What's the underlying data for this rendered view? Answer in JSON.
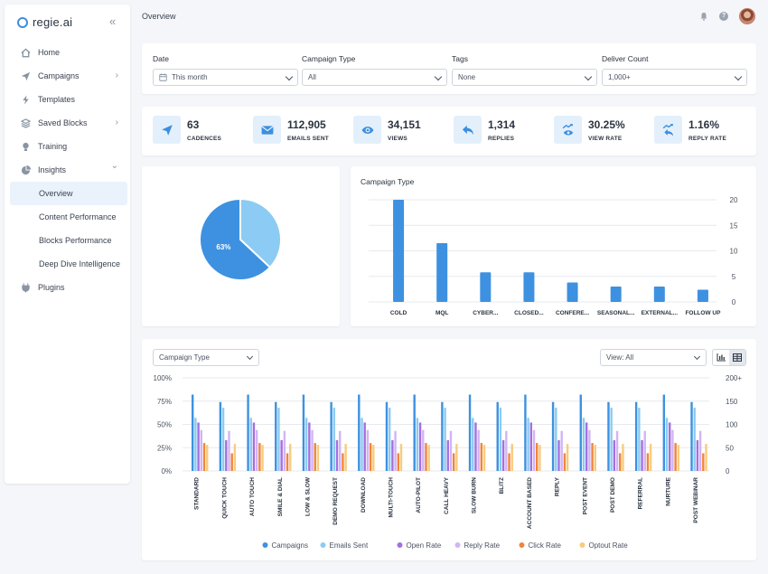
{
  "brand": {
    "name": "regie.ai",
    "accent": "#3b8fe0"
  },
  "sidebar": {
    "items": [
      {
        "label": "Home",
        "icon": "home-icon",
        "chevron": false
      },
      {
        "label": "Campaigns",
        "icon": "send-icon",
        "chevron": true
      },
      {
        "label": "Templates",
        "icon": "lightning-icon",
        "chevron": false
      },
      {
        "label": "Saved Blocks",
        "icon": "blocks-icon",
        "chevron": true
      },
      {
        "label": "Training",
        "icon": "bulb-icon",
        "chevron": false
      },
      {
        "label": "Insights",
        "icon": "pie-icon",
        "chevron": true,
        "expanded": true
      },
      {
        "label": "Overview",
        "sub": true,
        "active": true
      },
      {
        "label": "Content Performance",
        "sub": true
      },
      {
        "label": "Blocks Performance",
        "sub": true
      },
      {
        "label": "Deep Dive Intelligence",
        "sub": true
      },
      {
        "label": "Plugins",
        "icon": "plug-icon",
        "chevron": false
      }
    ]
  },
  "header": {
    "title": "Overview"
  },
  "filters": [
    {
      "label": "Date",
      "value": "This month",
      "icon": "calendar-icon"
    },
    {
      "label": "Campaign Type",
      "value": "All"
    },
    {
      "label": "Tags",
      "value": "None"
    },
    {
      "label": "Deliver Count",
      "value": "1,000+"
    }
  ],
  "stats": [
    {
      "value": "63",
      "label": "CADENCES",
      "icon": "send-icon"
    },
    {
      "value": "112,905",
      "label": "EMAILS SENT",
      "icon": "mail-icon"
    },
    {
      "value": "34,151",
      "label": "VIEWS",
      "icon": "eye-icon"
    },
    {
      "value": "1,314",
      "label": "REPLIES",
      "icon": "reply-icon"
    },
    {
      "value": "30.25%",
      "label": "VIEW RATE",
      "icon": "view-rate-icon"
    },
    {
      "value": "1.16%",
      "label": "REPLY RATE",
      "icon": "reply-rate-icon"
    }
  ],
  "bottom": {
    "type_select": "Campaign Type",
    "view_select": "View: All"
  },
  "chart_data": [
    {
      "type": "pie",
      "values": [
        37,
        63
      ],
      "colors": [
        "#8ccbf3",
        "#3d91e0"
      ],
      "labels": [
        "",
        "63%"
      ]
    },
    {
      "type": "bar",
      "title": "Campaign Type",
      "categories": [
        "COLD",
        "MQL",
        "CYBER...",
        "CLOSED...",
        "CONFERE...",
        "SEASONAL...",
        "EXTERNAL...",
        "FOLLOW UP"
      ],
      "values": [
        20,
        11.5,
        5.8,
        5.8,
        3.8,
        3,
        3,
        2.4
      ],
      "ylim": [
        0,
        20
      ],
      "yticks": [
        0,
        5,
        10,
        15,
        20
      ],
      "color": "#3d91e0"
    },
    {
      "type": "bar",
      "categories": [
        "STANDARD",
        "QUICK TOUCH",
        "AUTO TOUCH",
        "SMILE & DIAL",
        "LOW & SLOW",
        "DEMO REQUEST",
        "DOWNLOAD",
        "MULTI-TOUCH",
        "AUTO-PILOT",
        "CALL HEAVY",
        "SLOW BURN",
        "BLITZ",
        "ACCOUNT BASED",
        "REPLY",
        "POST EVENT",
        "POST DEMO",
        "REFERRAL",
        "NURTURE",
        "POST WEBINAR"
      ],
      "series": [
        {
          "name": "Campaigns",
          "color": "#3d91e0",
          "values": [
            82,
            74,
            82,
            74,
            82,
            74,
            82,
            74,
            82,
            74,
            82,
            74,
            82,
            74,
            82,
            74,
            74,
            82,
            74
          ]
        },
        {
          "name": "Emails Sent",
          "color": "#8ccbf3",
          "values": [
            57,
            68,
            57,
            68,
            57,
            68,
            57,
            68,
            57,
            68,
            57,
            68,
            57,
            68,
            57,
            68,
            68,
            57,
            68
          ]
        },
        {
          "name": "Open Rate",
          "color": "#a46fe0",
          "values": [
            52,
            33,
            52,
            33,
            52,
            33,
            52,
            33,
            52,
            33,
            52,
            33,
            52,
            33,
            52,
            33,
            33,
            52,
            33
          ]
        },
        {
          "name": "Reply Rate",
          "color": "#d2b4f4",
          "values": [
            44,
            43,
            44,
            43,
            44,
            43,
            44,
            43,
            44,
            43,
            44,
            43,
            44,
            43,
            44,
            43,
            43,
            44,
            43
          ]
        },
        {
          "name": "Click Rate",
          "color": "#f0853a",
          "values": [
            30,
            19,
            30,
            19,
            30,
            19,
            30,
            19,
            30,
            19,
            30,
            19,
            30,
            19,
            30,
            19,
            19,
            30,
            19
          ]
        },
        {
          "name": "Optout Rate",
          "color": "#f7cc7e",
          "values": [
            28,
            29,
            28,
            29,
            28,
            29,
            28,
            29,
            28,
            29,
            28,
            29,
            28,
            29,
            28,
            29,
            29,
            28,
            29
          ]
        }
      ],
      "y_left_ticks": [
        "0%",
        "25%",
        "50%",
        "75%",
        "100%"
      ],
      "y_right_ticks": [
        "0",
        "50",
        "100",
        "150",
        "200+"
      ],
      "ylim": [
        0,
        100
      ],
      "legend": "bottom"
    }
  ]
}
